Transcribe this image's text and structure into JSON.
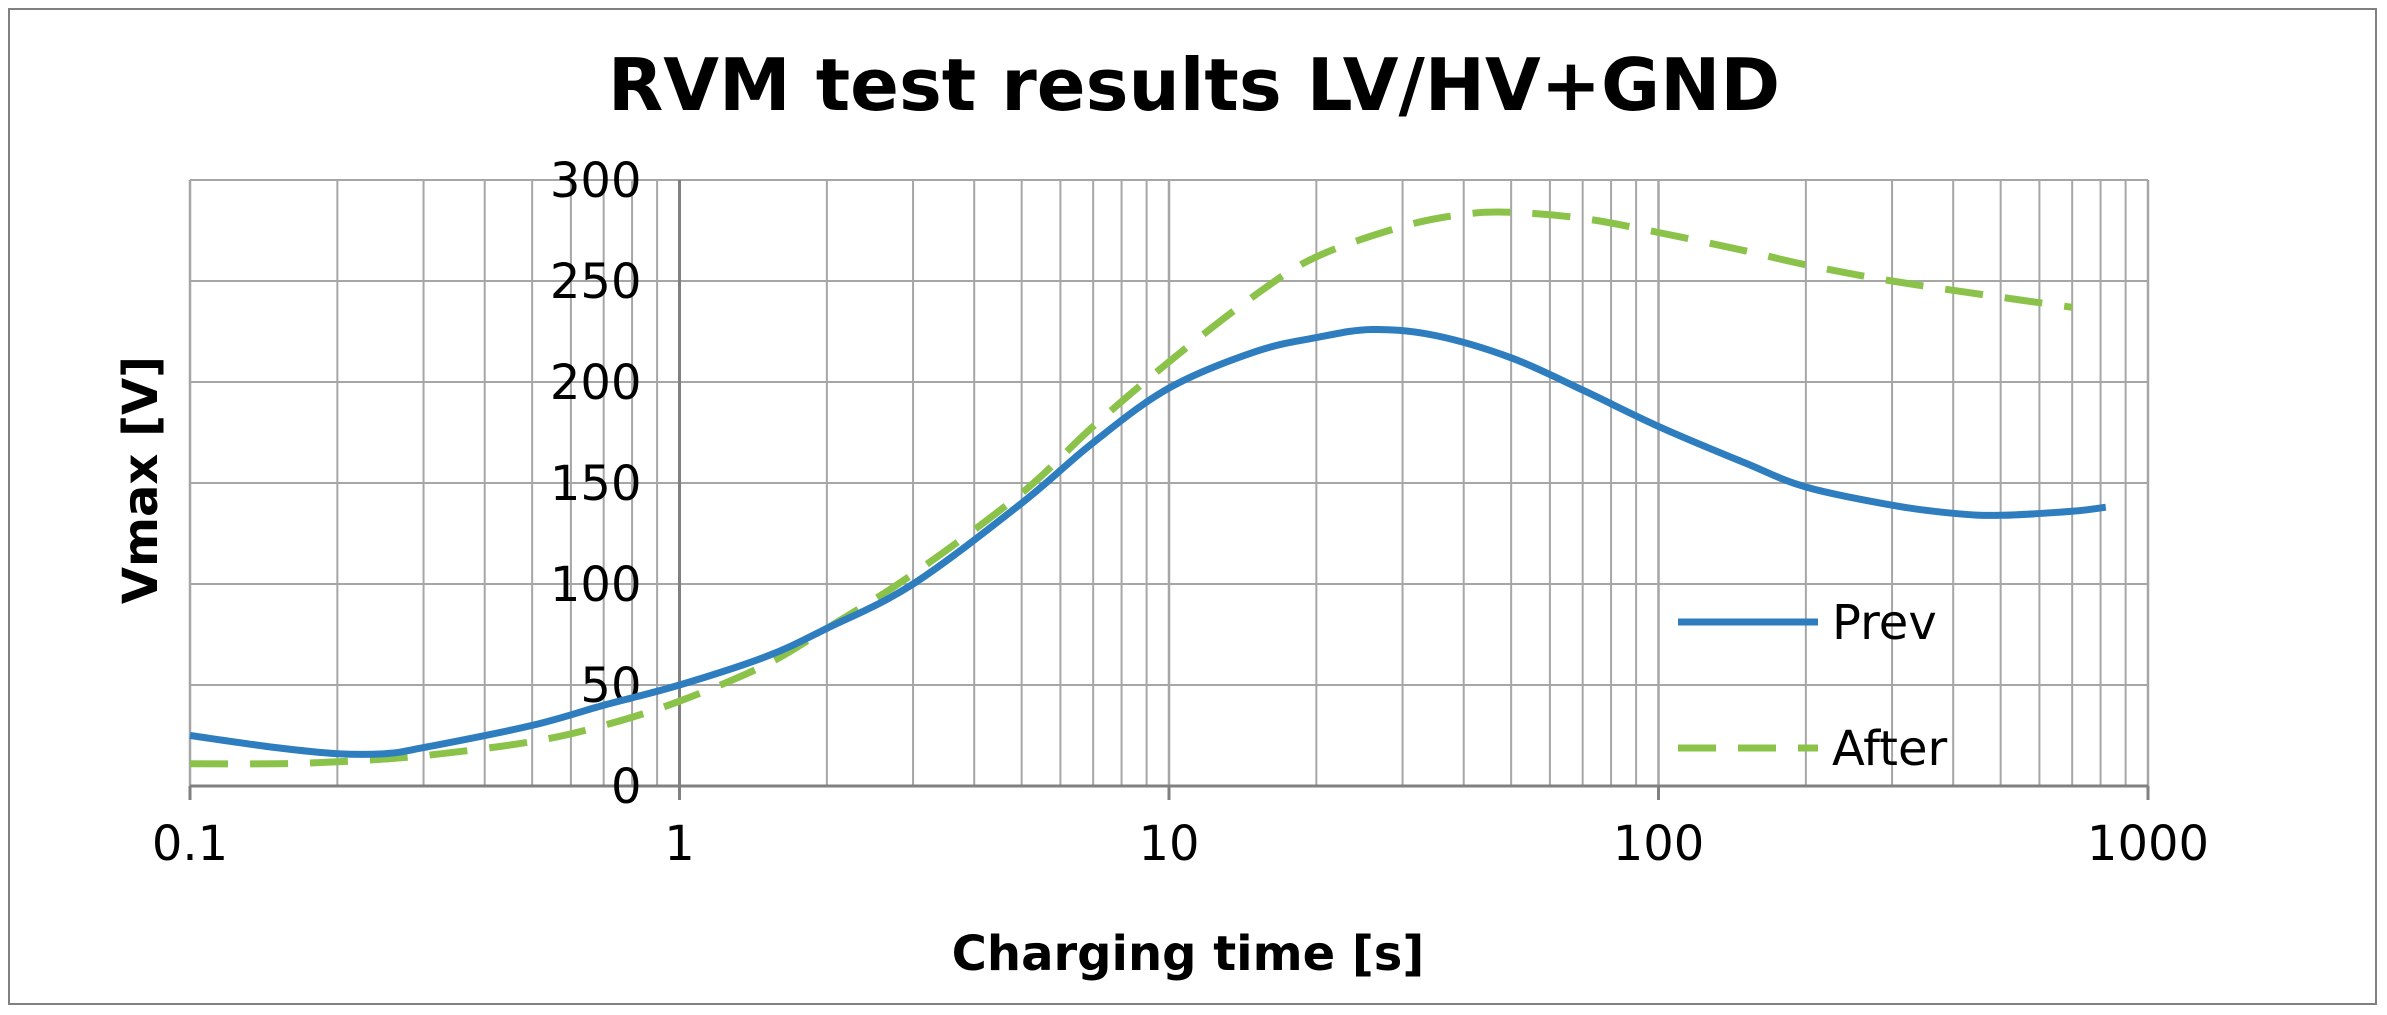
{
  "chart_data": {
    "type": "line",
    "title": "RVM test results LV/HV+GND",
    "xlabel": "Charging time [s]",
    "ylabel": "Vmax [V]",
    "x_scale": "log",
    "xlim": [
      0.1,
      1000
    ],
    "ylim": [
      0,
      300
    ],
    "x_ticks": [
      "0.1",
      "1",
      "10",
      "100",
      "1000"
    ],
    "y_ticks": [
      "0",
      "50",
      "100",
      "150",
      "200",
      "250",
      "300"
    ],
    "grid": true,
    "legend_position": "bottom-right",
    "series": [
      {
        "name": "Prev",
        "color": "#2e7dbf",
        "style": "solid",
        "points": [
          [
            0.1,
            25
          ],
          [
            0.15,
            19
          ],
          [
            0.2,
            16
          ],
          [
            0.25,
            16
          ],
          [
            0.3,
            19
          ],
          [
            0.5,
            30
          ],
          [
            0.7,
            40
          ],
          [
            1,
            50
          ],
          [
            1.5,
            64
          ],
          [
            2,
            78
          ],
          [
            3,
            100
          ],
          [
            5,
            140
          ],
          [
            7,
            170
          ],
          [
            10,
            197
          ],
          [
            15,
            215
          ],
          [
            20,
            222
          ],
          [
            26,
            226
          ],
          [
            35,
            223
          ],
          [
            50,
            212
          ],
          [
            70,
            196
          ],
          [
            100,
            178
          ],
          [
            150,
            160
          ],
          [
            200,
            148
          ],
          [
            300,
            139
          ],
          [
            400,
            135
          ],
          [
            500,
            134
          ],
          [
            700,
            136
          ],
          [
            820,
            138
          ]
        ]
      },
      {
        "name": "After",
        "color": "#8bc34a",
        "style": "dashed",
        "points": [
          [
            0.1,
            11
          ],
          [
            0.15,
            11
          ],
          [
            0.2,
            12
          ],
          [
            0.3,
            15
          ],
          [
            0.5,
            22
          ],
          [
            0.7,
            30
          ],
          [
            1,
            42
          ],
          [
            1.5,
            60
          ],
          [
            2,
            78
          ],
          [
            3,
            105
          ],
          [
            5,
            145
          ],
          [
            7,
            178
          ],
          [
            10,
            210
          ],
          [
            15,
            243
          ],
          [
            20,
            262
          ],
          [
            30,
            277
          ],
          [
            40,
            283
          ],
          [
            50,
            284
          ],
          [
            70,
            281
          ],
          [
            100,
            274
          ],
          [
            150,
            265
          ],
          [
            200,
            258
          ],
          [
            300,
            250
          ],
          [
            500,
            242
          ],
          [
            700,
            237
          ]
        ]
      }
    ]
  }
}
